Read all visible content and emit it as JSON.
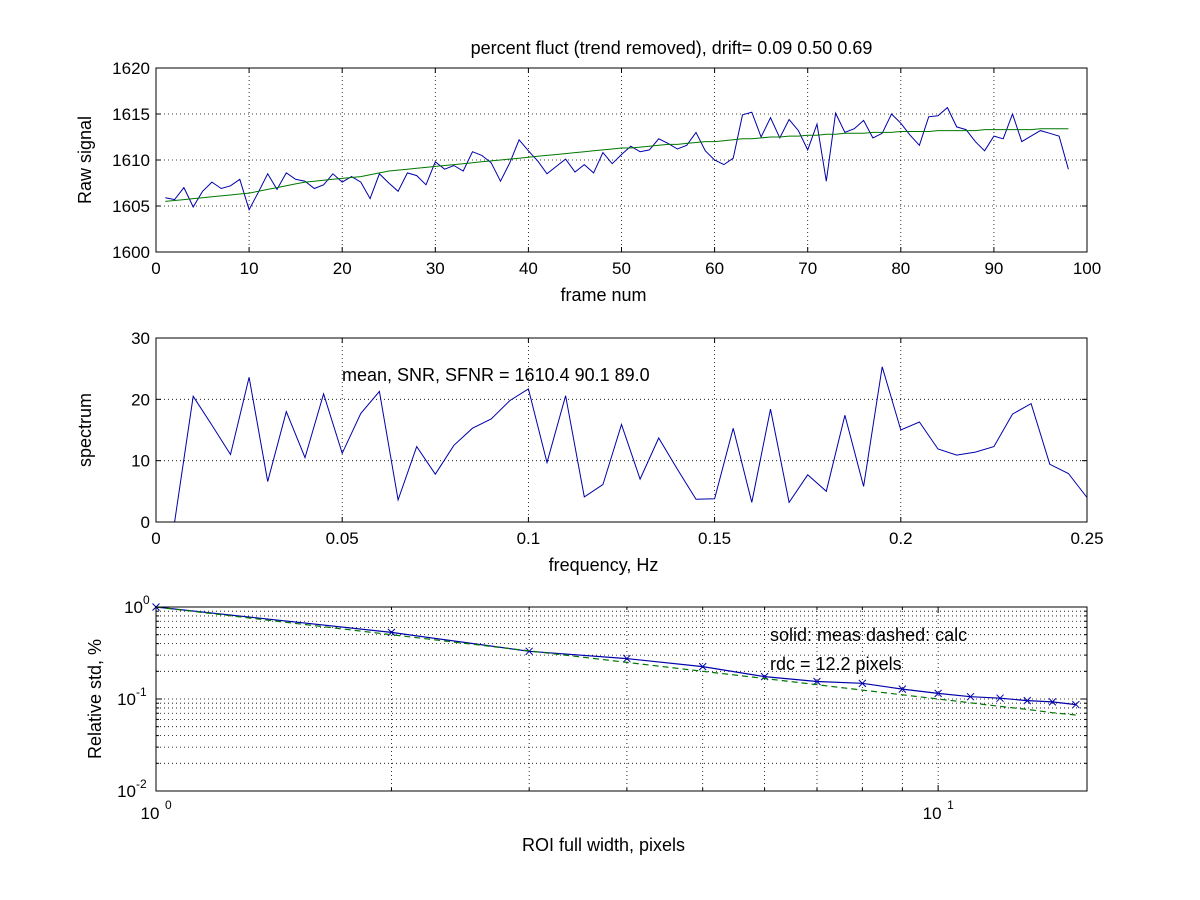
{
  "chart_data": [
    {
      "type": "line",
      "title": "percent fluct (trend removed), drift=  0.09  0.50  0.69",
      "xlabel": "frame num",
      "ylabel": "Raw signal",
      "xlim": [
        0,
        100
      ],
      "ylim": [
        1600,
        1620
      ],
      "xticks": [
        0,
        10,
        20,
        30,
        40,
        50,
        60,
        70,
        80,
        90,
        100
      ],
      "yticks": [
        1600,
        1605,
        1610,
        1615,
        1620
      ],
      "grid": true,
      "x": [
        1,
        2,
        3,
        4,
        5,
        6,
        7,
        8,
        9,
        10,
        11,
        12,
        13,
        14,
        15,
        16,
        17,
        18,
        19,
        20,
        21,
        22,
        23,
        24,
        25,
        26,
        27,
        28,
        29,
        30,
        31,
        32,
        33,
        34,
        35,
        36,
        37,
        38,
        39,
        40,
        41,
        42,
        43,
        44,
        45,
        46,
        47,
        48,
        49,
        50,
        51,
        52,
        53,
        54,
        55,
        56,
        57,
        58,
        59,
        60,
        61,
        62,
        63,
        64,
        65,
        66,
        67,
        68,
        69,
        70,
        71,
        72,
        73,
        74,
        75,
        76,
        77,
        78,
        79,
        80,
        81,
        82,
        83,
        84,
        85,
        86,
        87,
        88,
        89,
        90,
        91,
        92,
        93,
        94,
        95,
        96,
        97,
        98
      ],
      "series": [
        {
          "color": "#0000aa",
          "values": [
            1605.9,
            1605.7,
            1607.0,
            1604.9,
            1606.6,
            1607.6,
            1606.9,
            1607.2,
            1607.9,
            1604.6,
            1606.5,
            1608.5,
            1606.8,
            1608.6,
            1607.9,
            1607.7,
            1606.9,
            1607.3,
            1608.5,
            1607.6,
            1608.2,
            1607.6,
            1605.8,
            1608.5,
            1607.5,
            1606.6,
            1608.6,
            1608.3,
            1607.3,
            1609.8,
            1609.0,
            1609.4,
            1608.8,
            1610.9,
            1610.5,
            1609.7,
            1607.7,
            1609.7,
            1612.2,
            1611.0,
            1609.9,
            1608.5,
            1609.3,
            1610.1,
            1608.7,
            1609.5,
            1608.6,
            1610.8,
            1609.6,
            1610.6,
            1611.5,
            1610.9,
            1611.1,
            1612.3,
            1611.8,
            1611.2,
            1611.6,
            1613.0,
            1611.0,
            1610.0,
            1609.5,
            1610.2,
            1614.9,
            1615.2,
            1612.5,
            1614.6,
            1612.4,
            1614.4,
            1613.2,
            1611.1,
            1613.9,
            1607.7,
            1615.1,
            1613.0,
            1613.4,
            1614.3,
            1612.4,
            1612.9,
            1615.0,
            1614.0,
            1612.7,
            1611.6,
            1614.7,
            1614.8,
            1615.7,
            1613.6,
            1613.3,
            1612.0,
            1611.0,
            1612.6,
            1612.3,
            1615.0,
            1612.0,
            1612.6,
            1613.2,
            1612.9,
            1612.6,
            1609.0
          ]
        },
        {
          "color": "#007700",
          "values": [
            1605.5,
            1605.6,
            1605.7,
            1605.8,
            1605.9,
            1606.0,
            1606.1,
            1606.2,
            1606.3,
            1606.4,
            1606.6,
            1606.8,
            1607.0,
            1607.2,
            1607.4,
            1607.6,
            1607.7,
            1607.8,
            1607.9,
            1608.0,
            1608.1,
            1608.2,
            1608.4,
            1608.6,
            1608.8,
            1608.9,
            1609.0,
            1609.1,
            1609.2,
            1609.3,
            1609.4,
            1609.5,
            1609.6,
            1609.7,
            1609.8,
            1609.9,
            1610.0,
            1610.1,
            1610.2,
            1610.3,
            1610.4,
            1610.5,
            1610.6,
            1610.7,
            1610.8,
            1610.9,
            1611.0,
            1611.1,
            1611.2,
            1611.3,
            1611.3,
            1611.4,
            1611.5,
            1611.6,
            1611.7,
            1611.7,
            1611.8,
            1611.9,
            1612.0,
            1612.0,
            1612.1,
            1612.2,
            1612.3,
            1612.3,
            1612.4,
            1612.5,
            1612.5,
            1612.6,
            1612.6,
            1612.7,
            1612.7,
            1612.8,
            1612.8,
            1612.9,
            1612.9,
            1612.9,
            1613.0,
            1613.0,
            1613.0,
            1613.1,
            1613.1,
            1613.1,
            1613.1,
            1613.2,
            1613.2,
            1613.2,
            1613.2,
            1613.2,
            1613.3,
            1613.3,
            1613.3,
            1613.3,
            1613.3,
            1613.3,
            1613.4,
            1613.4,
            1613.4,
            1613.4
          ]
        }
      ]
    },
    {
      "type": "line",
      "xlabel": "frequency, Hz",
      "ylabel": "spectrum",
      "xlim": [
        0,
        0.25
      ],
      "ylim": [
        0,
        30
      ],
      "xticks": [
        0,
        0.05,
        0.1,
        0.15,
        0.2,
        0.25
      ],
      "yticks": [
        0,
        10,
        20,
        30
      ],
      "grid": true,
      "annotation": "mean, SNR, SFNR = 1610.4   90.1   89.0",
      "x": [
        0.005,
        0.01,
        0.015,
        0.02,
        0.025,
        0.03,
        0.035,
        0.04,
        0.045,
        0.05,
        0.055,
        0.06,
        0.065,
        0.07,
        0.075,
        0.08,
        0.085,
        0.09,
        0.095,
        0.1,
        0.105,
        0.11,
        0.115,
        0.12,
        0.125,
        0.13,
        0.135,
        0.14,
        0.145,
        0.15,
        0.155,
        0.16,
        0.165,
        0.17,
        0.175,
        0.18,
        0.185,
        0.19,
        0.195,
        0.2,
        0.205,
        0.21,
        0.215,
        0.22,
        0.225,
        0.23,
        0.235,
        0.24,
        0.245,
        0.25
      ],
      "series": [
        {
          "color": "#0000aa",
          "values": [
            0,
            20.5,
            15.8,
            11.0,
            23.6,
            6.6,
            18.0,
            10.5,
            20.9,
            11.2,
            17.7,
            21.3,
            3.6,
            12.3,
            7.8,
            12.5,
            15.3,
            16.8,
            19.8,
            21.7,
            9.7,
            20.6,
            4.1,
            6.1,
            15.9,
            7.0,
            13.7,
            8.6,
            3.7,
            3.8,
            15.3,
            3.2,
            18.4,
            3.2,
            7.7,
            5.0,
            17.4,
            5.8,
            25.3,
            15.0,
            16.3,
            11.9,
            10.9,
            11.4,
            12.3,
            17.6,
            19.3,
            9.4,
            7.9,
            4.0
          ]
        }
      ]
    },
    {
      "type": "line",
      "xlabel": "ROI full width, pixels",
      "ylabel": "Relative std, %",
      "xscale": "log",
      "yscale": "log",
      "xlim": [
        1,
        15.5
      ],
      "ylim": [
        0.01,
        1
      ],
      "xticks": [
        1,
        10
      ],
      "yticks": [
        0.01,
        0.1,
        1
      ],
      "grid": true,
      "annotations": [
        "solid: meas   dashed: calc",
        "rdc = 12.2 pixels"
      ],
      "x": [
        1,
        2,
        3,
        4,
        5,
        6,
        7,
        8,
        9,
        10,
        11,
        12,
        13,
        14,
        15
      ],
      "series": [
        {
          "style": "solid",
          "marker": "x",
          "color": "#0000aa",
          "values": [
            1.0,
            0.53,
            0.33,
            0.275,
            0.225,
            0.175,
            0.155,
            0.148,
            0.128,
            0.115,
            0.106,
            0.102,
            0.096,
            0.093,
            0.087
          ]
        },
        {
          "style": "dashed",
          "color": "#007700",
          "values": [
            1.0,
            0.5,
            0.333,
            0.25,
            0.2,
            0.167,
            0.143,
            0.125,
            0.111,
            0.1,
            0.091,
            0.083,
            0.077,
            0.071,
            0.067
          ]
        }
      ]
    }
  ]
}
